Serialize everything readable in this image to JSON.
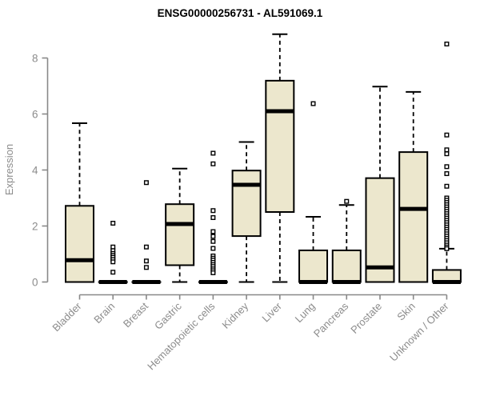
{
  "chart_data": {
    "type": "box",
    "title": "ENSG00000256731 - AL591069.1",
    "xlabel": "",
    "ylabel": "Expression",
    "ylim": [
      0,
      8.9
    ],
    "yticks": [
      0,
      2,
      4,
      6,
      8
    ],
    "grid": false,
    "legend": "none",
    "colors": {
      "box_fill": "#ece7cd",
      "box_stroke": "#000000",
      "axis": "#888888",
      "tick_text": "#8c8c8c",
      "title_text": "#000000",
      "background": "#ffffff"
    },
    "categories": [
      {
        "label": "Bladder",
        "q1": 0,
        "median": 0.78,
        "q3": 2.72,
        "whisker_low": 0,
        "whisker_high": 5.67,
        "outliers": []
      },
      {
        "label": "Brain",
        "q1": 0,
        "median": 0,
        "q3": 0,
        "whisker_low": 0,
        "whisker_high": 0,
        "outliers": [
          2.1,
          1.25,
          1.12,
          1.02,
          0.95,
          0.88,
          0.8,
          0.72,
          0.35
        ]
      },
      {
        "label": "Breast",
        "q1": 0,
        "median": 0,
        "q3": 0,
        "whisker_low": 0,
        "whisker_high": 0,
        "outliers": [
          3.55,
          1.25,
          0.75,
          0.52
        ]
      },
      {
        "label": "Gastric",
        "q1": 0.6,
        "median": 2.07,
        "q3": 2.78,
        "whisker_low": 0,
        "whisker_high": 4.05,
        "outliers": []
      },
      {
        "label": "Hematopoietic cells",
        "q1": 0,
        "median": 0,
        "q3": 0,
        "whisker_low": 0,
        "whisker_high": 0,
        "outliers": [
          4.6,
          4.22,
          2.55,
          2.3,
          1.8,
          1.63,
          1.45,
          1.2,
          0.93,
          0.85,
          0.78,
          0.7,
          0.62,
          0.55,
          0.47,
          0.4,
          0.33
        ]
      },
      {
        "label": "Kidney",
        "q1": 1.64,
        "median": 3.47,
        "q3": 3.98,
        "whisker_low": 0,
        "whisker_high": 5.0,
        "outliers": []
      },
      {
        "label": "Liver",
        "q1": 2.5,
        "median": 6.1,
        "q3": 7.19,
        "whisker_low": 0,
        "whisker_high": 8.85,
        "outliers": []
      },
      {
        "label": "Lung",
        "q1": 0,
        "median": 0,
        "q3": 1.13,
        "whisker_low": 0,
        "whisker_high": 2.33,
        "outliers": [
          6.37
        ]
      },
      {
        "label": "Pancreas",
        "q1": 0,
        "median": 0,
        "q3": 1.13,
        "whisker_low": 0,
        "whisker_high": 2.75,
        "outliers": [
          2.88
        ]
      },
      {
        "label": "Prostate",
        "q1": 0,
        "median": 0.52,
        "q3": 3.71,
        "whisker_low": 0,
        "whisker_high": 6.98,
        "outliers": []
      },
      {
        "label": "Skin",
        "q1": 0,
        "median": 2.61,
        "q3": 4.64,
        "whisker_low": 0,
        "whisker_high": 6.79,
        "outliers": []
      },
      {
        "label": "Unknown / Other",
        "q1": 0,
        "median": 0,
        "q3": 0.43,
        "whisker_low": 0,
        "whisker_high": 1.19,
        "outliers": [
          8.5,
          5.25,
          4.72,
          4.58,
          4.12,
          3.87,
          3.42,
          3.0,
          2.92,
          2.84,
          2.76,
          2.68,
          2.6,
          2.52,
          2.44,
          2.36,
          2.28,
          2.2,
          2.12,
          2.04,
          1.96,
          1.88,
          1.8,
          1.72,
          1.64,
          1.56,
          1.48,
          1.4,
          1.32,
          1.25,
          1.19
        ]
      }
    ]
  }
}
